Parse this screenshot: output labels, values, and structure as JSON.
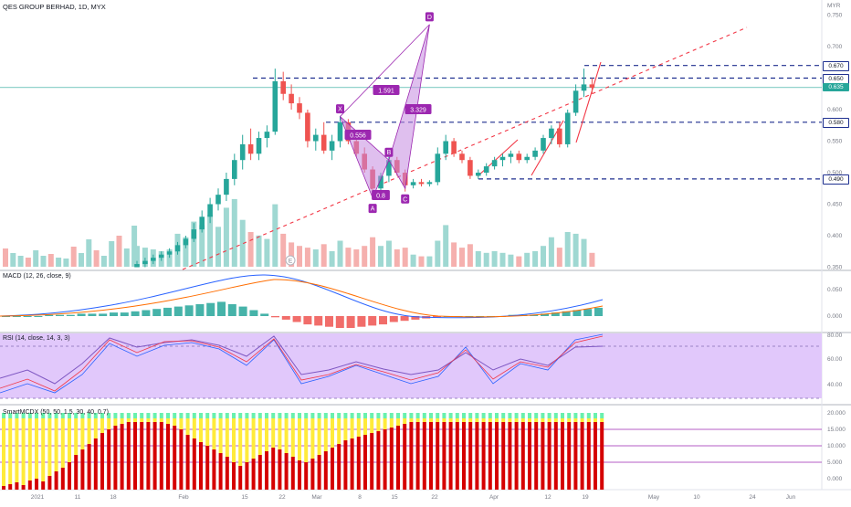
{
  "symbol": {
    "title": "QES GROUP BERHAD, 1D, MYX",
    "currency": "MYR"
  },
  "price_axis": {
    "ticks": [
      "0.750",
      "0.700",
      "0.650",
      "0.600",
      "0.550",
      "0.500",
      "0.450",
      "0.400",
      "0.350"
    ],
    "ticks_values": [
      0.75,
      0.7,
      0.65,
      0.6,
      0.55,
      0.5,
      0.45,
      0.4,
      0.35
    ],
    "tags": [
      {
        "label": "0.670",
        "value": 0.67,
        "style": "white"
      },
      {
        "label": "0.650",
        "value": 0.65,
        "style": "white"
      },
      {
        "label": "0.635",
        "value": 0.635,
        "style": "teal"
      },
      {
        "label": "0.580",
        "value": 0.58,
        "style": "white"
      },
      {
        "label": "0.490",
        "value": 0.49,
        "style": "white"
      }
    ]
  },
  "pattern": {
    "points": [
      {
        "label": "X",
        "bar": 25,
        "price": 0.589
      },
      {
        "label": "A",
        "bar": 29,
        "price": 0.46
      },
      {
        "label": "B",
        "bar": 31,
        "price": 0.52
      },
      {
        "label": "C",
        "bar": 33,
        "price": 0.475
      },
      {
        "label": "D",
        "bar": 36,
        "price": 0.735
      }
    ],
    "ratios": [
      "1.591",
      "3.329",
      "0.556",
      "0.8"
    ]
  },
  "event_marker": "E",
  "panes": {
    "macd": {
      "label": "MACD (12, 26, close, 9)",
      "ticks": [
        "0.050",
        "0.000"
      ],
      "hist": [
        0,
        0,
        0,
        0,
        0.001,
        0.001,
        0.001,
        0.002,
        0.002,
        0.002,
        0.003,
        0.003,
        0.004,
        0.005,
        0.006,
        0.007,
        0.008,
        0.009,
        0.01,
        0.011,
        0.012,
        0.01,
        0.008,
        0.005,
        0.002,
        -0.001,
        -0.003,
        -0.005,
        -0.007,
        -0.008,
        -0.009,
        -0.01,
        -0.01,
        -0.009,
        -0.008,
        -0.007,
        -0.005,
        -0.004,
        -0.003,
        -0.002,
        -0.001,
        0,
        0,
        0,
        0,
        0,
        0,
        0.001,
        0.001,
        0.001,
        0.002,
        0.003,
        0.004,
        0.005,
        0.006,
        0.007
      ]
    },
    "rsi": {
      "label": "RSI (14, close, 14, 3, 3)",
      "ticks": [
        "80.00",
        "60.00",
        "40.00"
      ]
    },
    "smi": {
      "label": "SmartMCDX (50, 50, 1.5, 30, 40, 0.7)",
      "ticks": [
        "20.000",
        "15.000",
        "10.000",
        "5.000",
        "0.000"
      ]
    }
  },
  "time_axis": [
    "2021",
    "11",
    "18",
    "Feb",
    "15",
    "22",
    "Mar",
    "8",
    "15",
    "22",
    "Apr",
    "12",
    "19",
    "May",
    "10",
    "24",
    "Jun"
  ],
  "time_axis_x": [
    41,
    85,
    124,
    201,
    268,
    309,
    347,
    394,
    432,
    476,
    541,
    600,
    641,
    716,
    763,
    824,
    866
  ],
  "chart_data": {
    "type": "candlestick",
    "title": "QES GROUP BERHAD, 1D, MYX",
    "ylabel": "MYR",
    "ylim": [
      0.35,
      0.75
    ],
    "candles": [
      {
        "o": 0.35,
        "h": 0.36,
        "l": 0.35,
        "c": 0.355,
        "v": 60
      },
      {
        "o": 0.355,
        "h": 0.365,
        "l": 0.35,
        "c": 0.36,
        "v": 55
      },
      {
        "o": 0.36,
        "h": 0.37,
        "l": 0.355,
        "c": 0.365,
        "v": 50
      },
      {
        "o": 0.365,
        "h": 0.375,
        "l": 0.36,
        "c": 0.37,
        "v": 45
      },
      {
        "o": 0.37,
        "h": 0.38,
        "l": 0.365,
        "c": 0.375,
        "v": 50
      },
      {
        "o": 0.375,
        "h": 0.39,
        "l": 0.37,
        "c": 0.385,
        "v": 95
      },
      {
        "o": 0.385,
        "h": 0.4,
        "l": 0.38,
        "c": 0.395,
        "v": 85
      },
      {
        "o": 0.395,
        "h": 0.42,
        "l": 0.39,
        "c": 0.41,
        "v": 130
      },
      {
        "o": 0.41,
        "h": 0.44,
        "l": 0.405,
        "c": 0.43,
        "v": 120
      },
      {
        "o": 0.43,
        "h": 0.46,
        "l": 0.42,
        "c": 0.45,
        "v": 150
      },
      {
        "o": 0.45,
        "h": 0.475,
        "l": 0.44,
        "c": 0.465,
        "v": 115
      },
      {
        "o": 0.465,
        "h": 0.5,
        "l": 0.455,
        "c": 0.49,
        "v": 170
      },
      {
        "o": 0.49,
        "h": 0.53,
        "l": 0.48,
        "c": 0.52,
        "v": 195
      },
      {
        "o": 0.52,
        "h": 0.56,
        "l": 0.505,
        "c": 0.545,
        "v": 135
      },
      {
        "o": 0.545,
        "h": 0.57,
        "l": 0.52,
        "c": 0.53,
        "v": 100
      },
      {
        "o": 0.53,
        "h": 0.565,
        "l": 0.52,
        "c": 0.555,
        "v": 90
      },
      {
        "o": 0.555,
        "h": 0.575,
        "l": 0.54,
        "c": 0.565,
        "v": 80
      },
      {
        "o": 0.565,
        "h": 0.665,
        "l": 0.56,
        "c": 0.645,
        "v": 180
      },
      {
        "o": 0.645,
        "h": 0.66,
        "l": 0.615,
        "c": 0.625,
        "v": 95
      },
      {
        "o": 0.625,
        "h": 0.64,
        "l": 0.6,
        "c": 0.61,
        "v": 70
      },
      {
        "o": 0.61,
        "h": 0.62,
        "l": 0.585,
        "c": 0.595,
        "v": 60
      },
      {
        "o": 0.595,
        "h": 0.6,
        "l": 0.54,
        "c": 0.55,
        "v": 55
      },
      {
        "o": 0.55,
        "h": 0.57,
        "l": 0.535,
        "c": 0.56,
        "v": 50
      },
      {
        "o": 0.56,
        "h": 0.58,
        "l": 0.53,
        "c": 0.535,
        "v": 65
      },
      {
        "o": 0.535,
        "h": 0.56,
        "l": 0.52,
        "c": 0.55,
        "v": 45
      },
      {
        "o": 0.55,
        "h": 0.59,
        "l": 0.54,
        "c": 0.58,
        "v": 75
      },
      {
        "o": 0.58,
        "h": 0.585,
        "l": 0.545,
        "c": 0.55,
        "v": 55
      },
      {
        "o": 0.55,
        "h": 0.56,
        "l": 0.525,
        "c": 0.53,
        "v": 50
      },
      {
        "o": 0.53,
        "h": 0.54,
        "l": 0.5,
        "c": 0.505,
        "v": 60
      },
      {
        "o": 0.505,
        "h": 0.51,
        "l": 0.46,
        "c": 0.475,
        "v": 85
      },
      {
        "o": 0.475,
        "h": 0.5,
        "l": 0.47,
        "c": 0.495,
        "v": 60
      },
      {
        "o": 0.495,
        "h": 0.525,
        "l": 0.485,
        "c": 0.52,
        "v": 75
      },
      {
        "o": 0.52,
        "h": 0.525,
        "l": 0.495,
        "c": 0.5,
        "v": 50
      },
      {
        "o": 0.5,
        "h": 0.505,
        "l": 0.47,
        "c": 0.48,
        "v": 55
      },
      {
        "o": 0.48,
        "h": 0.49,
        "l": 0.475,
        "c": 0.485,
        "v": 35
      },
      {
        "o": 0.485,
        "h": 0.49,
        "l": 0.478,
        "c": 0.482,
        "v": 30
      },
      {
        "o": 0.482,
        "h": 0.488,
        "l": 0.478,
        "c": 0.485,
        "v": 30
      },
      {
        "o": 0.485,
        "h": 0.54,
        "l": 0.48,
        "c": 0.53,
        "v": 75
      },
      {
        "o": 0.53,
        "h": 0.56,
        "l": 0.52,
        "c": 0.55,
        "v": 120
      },
      {
        "o": 0.55,
        "h": 0.555,
        "l": 0.525,
        "c": 0.53,
        "v": 70
      },
      {
        "o": 0.53,
        "h": 0.535,
        "l": 0.515,
        "c": 0.52,
        "v": 55
      },
      {
        "o": 0.52,
        "h": 0.525,
        "l": 0.49,
        "c": 0.495,
        "v": 65
      },
      {
        "o": 0.495,
        "h": 0.505,
        "l": 0.49,
        "c": 0.5,
        "v": 45
      },
      {
        "o": 0.5,
        "h": 0.515,
        "l": 0.495,
        "c": 0.51,
        "v": 40
      },
      {
        "o": 0.51,
        "h": 0.525,
        "l": 0.505,
        "c": 0.52,
        "v": 45
      },
      {
        "o": 0.52,
        "h": 0.53,
        "l": 0.51,
        "c": 0.525,
        "v": 40
      },
      {
        "o": 0.525,
        "h": 0.535,
        "l": 0.515,
        "c": 0.53,
        "v": 35
      },
      {
        "o": 0.53,
        "h": 0.535,
        "l": 0.515,
        "c": 0.52,
        "v": 30
      },
      {
        "o": 0.52,
        "h": 0.53,
        "l": 0.515,
        "c": 0.525,
        "v": 40
      },
      {
        "o": 0.525,
        "h": 0.54,
        "l": 0.52,
        "c": 0.535,
        "v": 45
      },
      {
        "o": 0.535,
        "h": 0.56,
        "l": 0.53,
        "c": 0.555,
        "v": 60
      },
      {
        "o": 0.555,
        "h": 0.575,
        "l": 0.545,
        "c": 0.57,
        "v": 85
      },
      {
        "o": 0.57,
        "h": 0.58,
        "l": 0.54,
        "c": 0.545,
        "v": 55
      },
      {
        "o": 0.545,
        "h": 0.6,
        "l": 0.54,
        "c": 0.595,
        "v": 100
      },
      {
        "o": 0.595,
        "h": 0.64,
        "l": 0.59,
        "c": 0.63,
        "v": 95
      },
      {
        "o": 0.63,
        "h": 0.665,
        "l": 0.62,
        "c": 0.64,
        "v": 80
      },
      {
        "o": 0.64,
        "h": 0.65,
        "l": 0.625,
        "c": 0.635,
        "v": 40
      }
    ]
  }
}
